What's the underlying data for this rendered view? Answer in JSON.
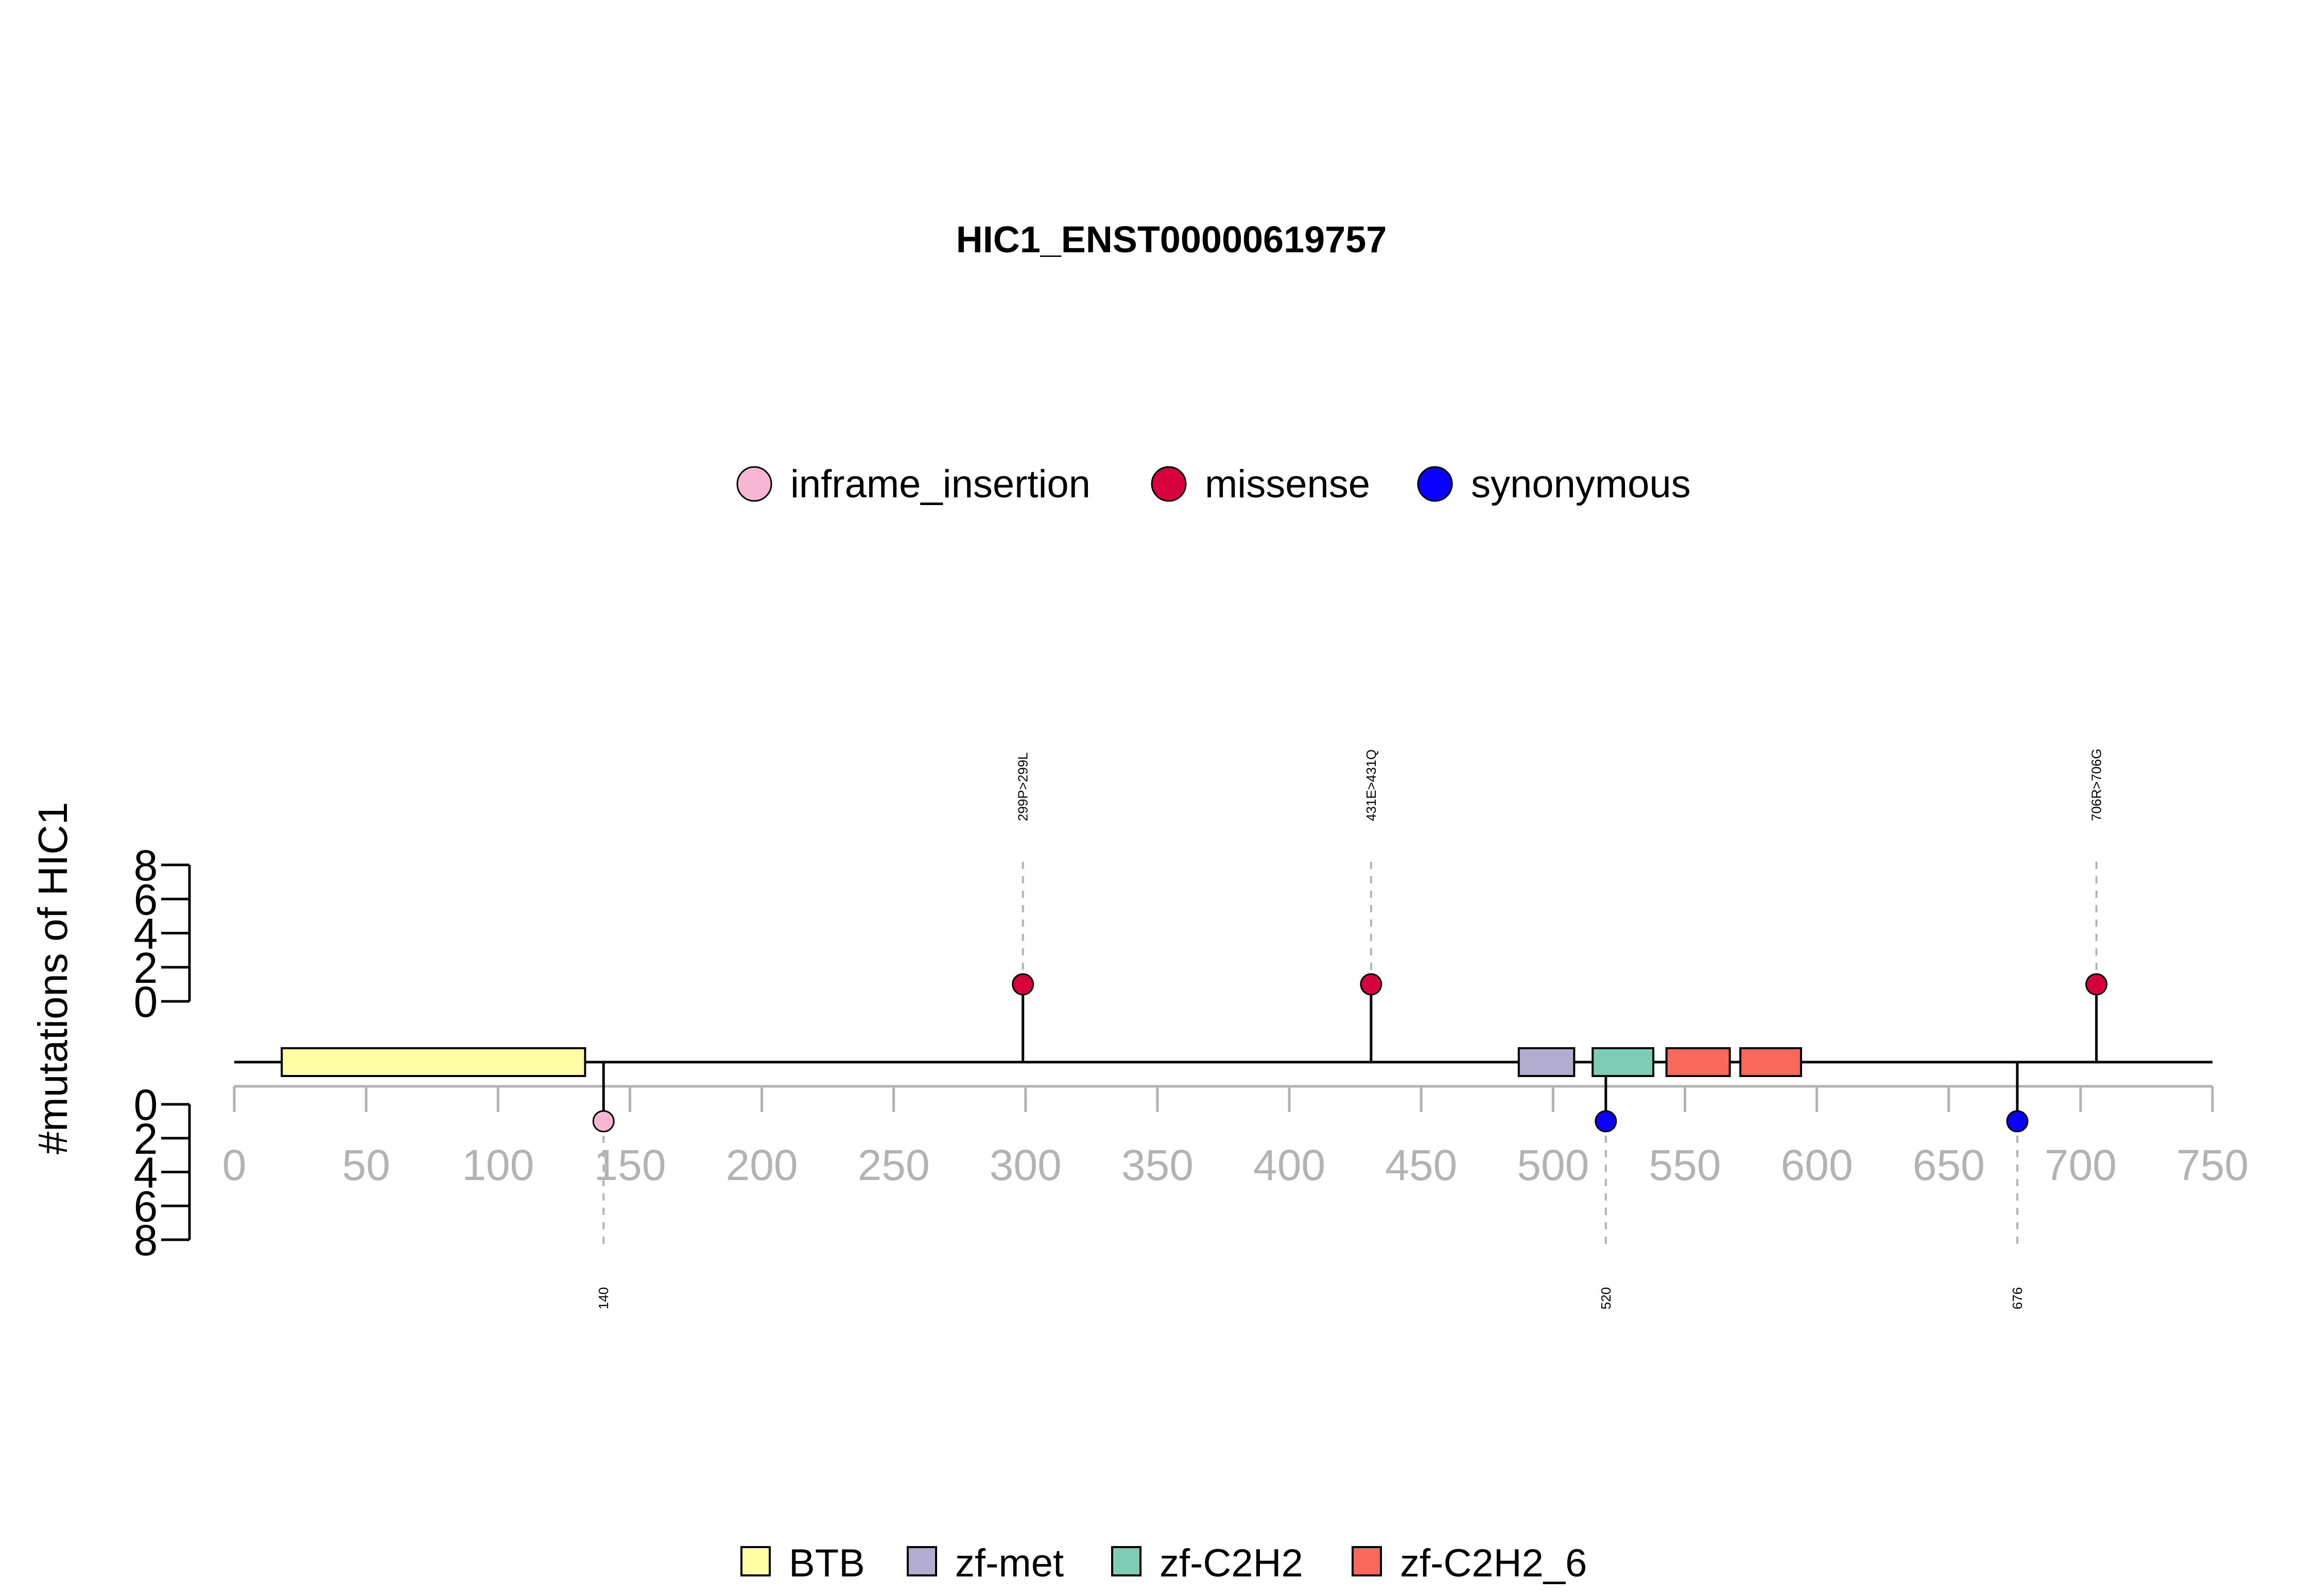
{
  "chart_data": {
    "type": "lollipop",
    "title": "HIC1_ENST00000619757",
    "ylabel": "#mutations of HIC1",
    "xlim": [
      0,
      750
    ],
    "x_ticks": [
      0,
      50,
      100,
      150,
      200,
      250,
      300,
      350,
      400,
      450,
      500,
      550,
      600,
      650,
      700,
      750
    ],
    "y_ticks": [
      0,
      2,
      4,
      6,
      8
    ],
    "ylim": [
      0,
      8
    ],
    "mutation_types": [
      {
        "name": "inframe_insertion",
        "color": "#f7b6d2"
      },
      {
        "name": "missense",
        "color": "#d6003c"
      },
      {
        "name": "synonymous",
        "color": "#0a00ff"
      }
    ],
    "mutations": [
      {
        "position": 299,
        "count": 1,
        "type": "missense",
        "label": "299P>299L",
        "side": "top"
      },
      {
        "position": 431,
        "count": 1,
        "type": "missense",
        "label": "431E>431Q",
        "side": "top"
      },
      {
        "position": 706,
        "count": 1,
        "type": "missense",
        "label": "706R>706G",
        "side": "top"
      },
      {
        "position": 140,
        "count": 1,
        "type": "inframe_insertion",
        "label": "140",
        "side": "bottom"
      },
      {
        "position": 520,
        "count": 1,
        "type": "synonymous",
        "label": "520",
        "side": "bottom"
      },
      {
        "position": 676,
        "count": 1,
        "type": "synonymous",
        "label": "676",
        "side": "bottom"
      }
    ],
    "domains": [
      {
        "name": "BTB",
        "start": 18,
        "end": 133,
        "color": "#ffffa6"
      },
      {
        "name": "zf-met",
        "start": 487,
        "end": 508,
        "color": "#b3acd1"
      },
      {
        "name": "zf-C2H2",
        "start": 515,
        "end": 538,
        "color": "#7fccb4"
      },
      {
        "name": "zf-C2H2_6",
        "start": 543,
        "end": 567,
        "color": "#f8695c"
      },
      {
        "name": "zf-C2H2_6",
        "start": 571,
        "end": 594,
        "color": "#f8695c"
      }
    ],
    "domain_legend": [
      {
        "name": "BTB",
        "color": "#ffffa6"
      },
      {
        "name": "zf-met",
        "color": "#b3acd1"
      },
      {
        "name": "zf-C2H2",
        "color": "#7fccb4"
      },
      {
        "name": "zf-C2H2_6",
        "color": "#f8695c"
      }
    ]
  }
}
